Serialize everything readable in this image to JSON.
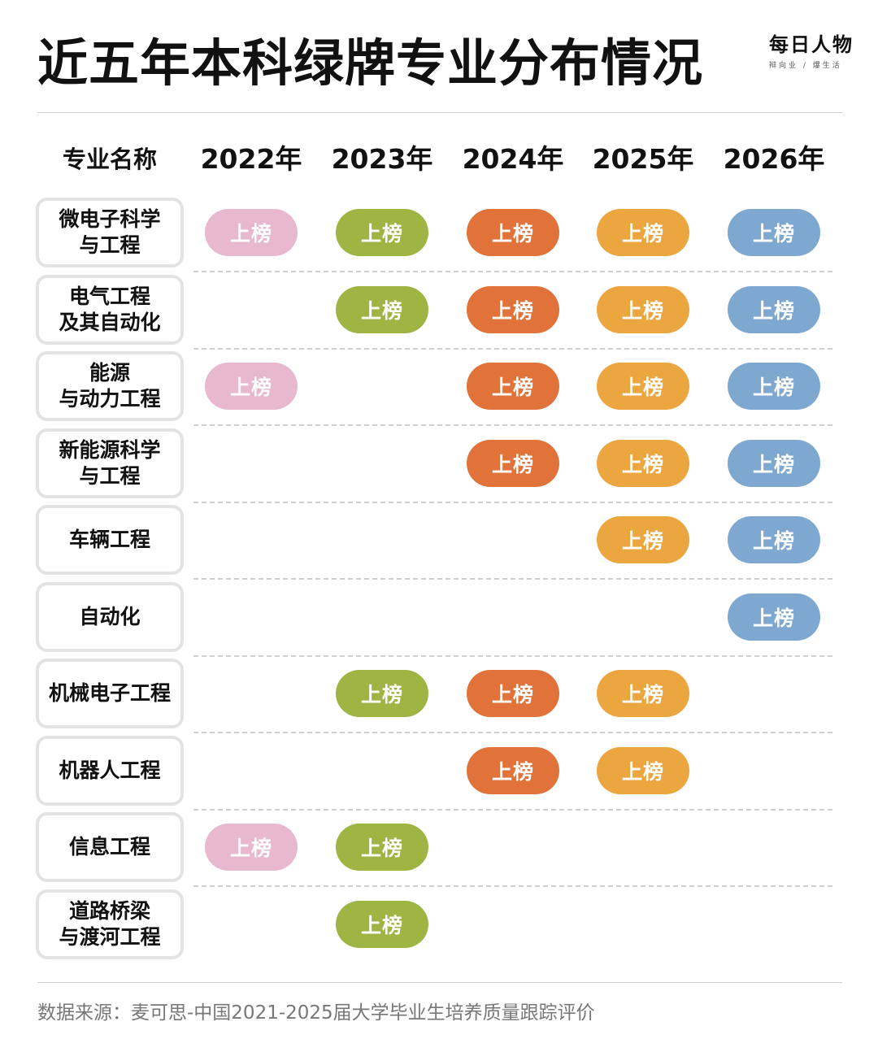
{
  "title": "近五年本科绿牌专业分布情况",
  "brand": {
    "name": "每日人物",
    "tagline": "辩向业 / 爆生活"
  },
  "source": "数据来源：麦可思-中国2021-2025届大学毕业生培养质量跟踪评价",
  "chart_data": {
    "type": "table",
    "header": "专业名称",
    "columns": [
      "2022年",
      "2023年",
      "2024年",
      "2025年",
      "2026年"
    ],
    "mark_label": "上榜",
    "column_colors": [
      "#e8b8cf",
      "#9eb443",
      "#e1733a",
      "#eca63f",
      "#7fa8d1"
    ],
    "rows": [
      {
        "name": "微电子科学\n与工程",
        "listed": [
          true,
          true,
          true,
          true,
          true
        ]
      },
      {
        "name": "电气工程\n及其自动化",
        "listed": [
          false,
          true,
          true,
          true,
          true
        ]
      },
      {
        "name": "能源\n与动力工程",
        "listed": [
          true,
          false,
          true,
          true,
          true
        ]
      },
      {
        "name": "新能源科学\n与工程",
        "listed": [
          false,
          false,
          true,
          true,
          true
        ]
      },
      {
        "name": "车辆工程",
        "listed": [
          false,
          false,
          false,
          true,
          true
        ]
      },
      {
        "name": "自动化",
        "listed": [
          false,
          false,
          false,
          false,
          true
        ]
      },
      {
        "name": "机械电子工程",
        "listed": [
          false,
          true,
          true,
          true,
          false
        ]
      },
      {
        "name": "机器人工程",
        "listed": [
          false,
          false,
          true,
          true,
          false
        ]
      },
      {
        "name": "信息工程",
        "listed": [
          true,
          true,
          false,
          false,
          false
        ]
      },
      {
        "name": "道路桥梁\n与渡河工程",
        "listed": [
          false,
          true,
          false,
          false,
          false
        ]
      }
    ]
  }
}
